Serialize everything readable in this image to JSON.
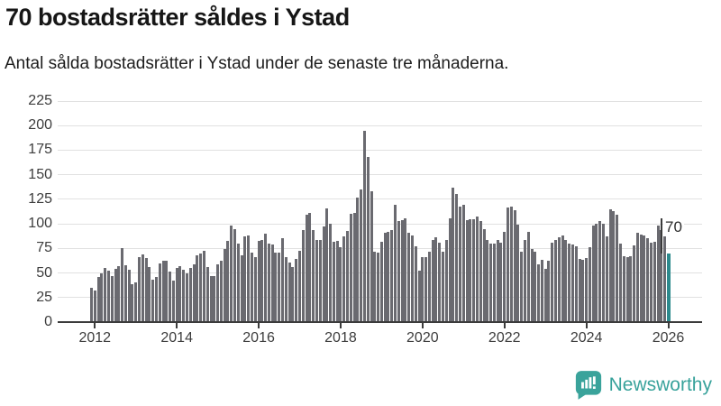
{
  "header": {
    "title": "70 bostadsrätter såldes i Ystad",
    "subtitle": "Antal sålda bostadsrätter i Ystad under de senaste tre månaderna."
  },
  "chart_data": {
    "type": "bar",
    "title": "70 bostadsrätter såldes i Ystad",
    "subtitle": "Antal sålda bostadsrätter i Ystad under de senaste tre månaderna.",
    "start_month": "2011-12",
    "end_month": "2026-01",
    "values": [
      35,
      32,
      46,
      50,
      55,
      52,
      47,
      54,
      57,
      75,
      58,
      53,
      39,
      40,
      66,
      69,
      65,
      56,
      43,
      46,
      60,
      62,
      62,
      51,
      42,
      55,
      57,
      53,
      50,
      55,
      59,
      68,
      70,
      73,
      56,
      47,
      47,
      59,
      62,
      74,
      83,
      98,
      95,
      80,
      68,
      87,
      88,
      71,
      66,
      83,
      84,
      90,
      80,
      79,
      71,
      71,
      85,
      66,
      61,
      56,
      64,
      73,
      94,
      109,
      111,
      94,
      84,
      84,
      97,
      116,
      100,
      82,
      83,
      76,
      87,
      93,
      110,
      111,
      127,
      135,
      195,
      168,
      133,
      72,
      71,
      82,
      91,
      92,
      94,
      119,
      103,
      104,
      106,
      91,
      88,
      77,
      52,
      66,
      66,
      72,
      84,
      86,
      81,
      72,
      84,
      106,
      137,
      130,
      118,
      119,
      104,
      105,
      105,
      107,
      103,
      95,
      84,
      80,
      80,
      84,
      81,
      92,
      117,
      118,
      114,
      99,
      72,
      84,
      92,
      74,
      72,
      59,
      63,
      54,
      62,
      81,
      84,
      86,
      88,
      84,
      80,
      79,
      77,
      64,
      63,
      65,
      76,
      98,
      100,
      103,
      100,
      87,
      115,
      113,
      109,
      80,
      67,
      66,
      67,
      78,
      91,
      89,
      88,
      85,
      81,
      82,
      98,
      94,
      97,
      70
    ],
    "y_ticks": [
      0,
      25,
      50,
      75,
      100,
      125,
      150,
      175,
      200,
      225
    ],
    "ylim": [
      0,
      225
    ],
    "x_tick_labels": [
      "2012",
      "2014",
      "2016",
      "2018",
      "2020",
      "2022",
      "2024",
      "2026"
    ],
    "grid": true,
    "legend": "none",
    "bar_color": "#6a6a70",
    "highlight_color": "#2d8a8d",
    "annotation": {
      "label": "70",
      "applies_to": "last_bar"
    }
  },
  "footer": {
    "brand": "Newsworthy",
    "brand_color": "#38a29b"
  }
}
